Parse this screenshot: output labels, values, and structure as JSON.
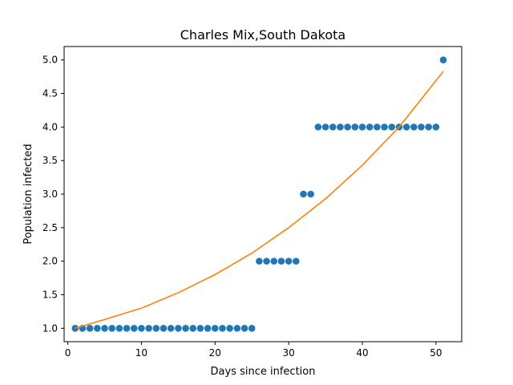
{
  "chart_data": {
    "type": "scatter",
    "title": "Charles Mix,South Dakota",
    "xlabel": "Days since infection",
    "ylabel": "Population infected",
    "xlim": [
      -0.5,
      53.5
    ],
    "ylim": [
      0.8,
      5.2
    ],
    "x_ticks": [
      0,
      10,
      20,
      30,
      40,
      50
    ],
    "y_ticks": [
      1.0,
      1.5,
      2.0,
      2.5,
      3.0,
      3.5,
      4.0,
      4.5,
      5.0
    ],
    "x_tick_labels": [
      "0",
      "10",
      "20",
      "30",
      "40",
      "50"
    ],
    "y_tick_labels": [
      "1.0",
      "1.5",
      "2.0",
      "2.5",
      "3.0",
      "3.5",
      "4.0",
      "4.5",
      "5.0"
    ],
    "grid": false,
    "colors": {
      "points": "#1f77b4",
      "fit": "#ff7f0e"
    },
    "series": [
      {
        "kind": "points",
        "x": [
          1,
          2,
          3,
          4,
          5,
          6,
          7,
          8,
          9,
          10,
          11,
          12,
          13,
          14,
          15,
          16,
          17,
          18,
          19,
          20,
          21,
          22,
          23,
          24,
          25,
          26,
          27,
          28,
          29,
          30,
          31,
          32,
          33,
          34,
          35,
          36,
          37,
          38,
          39,
          40,
          41,
          42,
          43,
          44,
          45,
          46,
          47,
          48,
          49,
          50,
          51
        ],
        "y": [
          1,
          1,
          1,
          1,
          1,
          1,
          1,
          1,
          1,
          1,
          1,
          1,
          1,
          1,
          1,
          1,
          1,
          1,
          1,
          1,
          1,
          1,
          1,
          1,
          1,
          2,
          2,
          2,
          2,
          2,
          2,
          3,
          3,
          4,
          4,
          4,
          4,
          4,
          4,
          4,
          4,
          4,
          4,
          4,
          4,
          4,
          4,
          4,
          4,
          4,
          5
        ]
      },
      {
        "kind": "fit-line",
        "x": [
          1,
          5,
          10,
          15,
          20,
          25,
          30,
          35,
          40,
          45,
          51
        ],
        "y": [
          1.0,
          1.13,
          1.3,
          1.53,
          1.8,
          2.12,
          2.5,
          2.93,
          3.43,
          4.0,
          4.83
        ]
      }
    ]
  }
}
